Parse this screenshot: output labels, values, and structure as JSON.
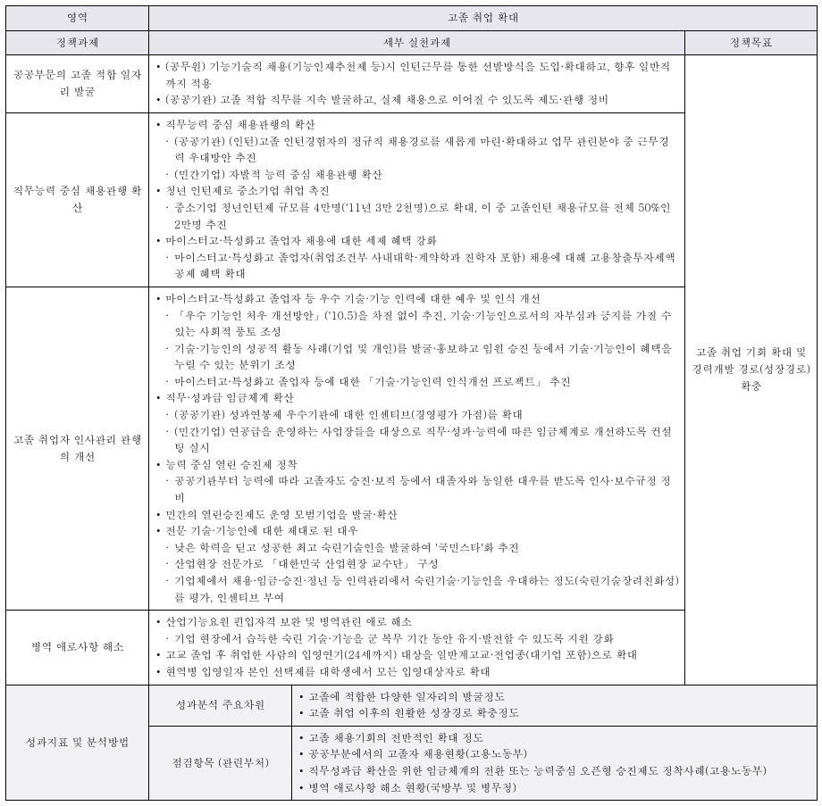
{
  "headers": {
    "area": "영역",
    "area_value": "고졸 취업 확대",
    "task": "정책과제",
    "detail": "세부 실천과제",
    "goal": "정책목표"
  },
  "goal_text": "고졸 취업 기회 확대 및 경력개발 경로(성장경로) 확충",
  "rows": [
    {
      "task": "공공부문의 고졸 적합 일자리 발굴",
      "lines": [
        {
          "lvl": 1,
          "t": "(공무원) 기능기술직 채용(기능인재추천제 등)시 인턴근무를 통한 선발방식을 도입·확대하고, 향후 일반직까지 적용"
        },
        {
          "lvl": 1,
          "t": "(공공기관) 고졸 적합 직무를 지속 발굴하고, 실제 채용으로 이어질 수 있도록 제도·관행 정비"
        }
      ]
    },
    {
      "task": "직무능력 중심 채용관행 확산",
      "lines": [
        {
          "lvl": 1,
          "t": "직무능력 중심 채용관행의 확산"
        },
        {
          "lvl": 2,
          "t": "(공공기관) (인턴)고졸 인턴경험자의 정규직 채용경로를 새롭게 마련·확대하고 업무 관련분야 중 근무경력 우대방안 추진"
        },
        {
          "lvl": 2,
          "t": "(민간기업) 자발적 능력 중심 채용관행 확산"
        },
        {
          "lvl": 1,
          "t": "청년 인턴제로 중소기업 취업 촉진"
        },
        {
          "lvl": 2,
          "t": "중소기업 청년인턴제 규모를 4만명('11년 3만 2천명)으로 확대, 이 중 고졸인턴 채용규모를 전체 50%인 2만명 추진"
        },
        {
          "lvl": 1,
          "t": "마이스터고·특성화고 졸업자 채용에 대한 세제 혜택 강화"
        },
        {
          "lvl": 2,
          "t": "마이스터고·특성화고 졸업자(취업조건부 사내대학·계약학과 진학자 포함) 채용에 대해 고용창출투자세액공제 혜택 확대"
        }
      ]
    },
    {
      "task": "고졸 취업자 인사관리 관행의 개선",
      "lines": [
        {
          "lvl": 1,
          "t": "마이스터고·특성화고 졸업자 등 우수 기술·기능 인력에 대한 예우 및 인식 개선"
        },
        {
          "lvl": 2,
          "t": "「우수 기능인 처우 개선방안」('10.5)을 차질 없이 추진, 기술·기능인으로서의 자부심과 긍지를 가질 수 있는 사회적 풍토 조성"
        },
        {
          "lvl": 2,
          "t": "기술·기능인의 성공적 활동 사례(기업 및 개인)를 발굴·홍보하고 임원 승진 등에서 기술·기능인이 혜택을 누릴 수 있는 분위기 조성"
        },
        {
          "lvl": 2,
          "t": "마이스터고·특성화고 졸업자 등에 대한 「기술·기능인력 인식개선 프로젝트」 추진"
        },
        {
          "lvl": 1,
          "t": "직무·성과급 임금체계 확산"
        },
        {
          "lvl": 2,
          "t": "(공공기관) 성과연봉제 우수기관에 대한 인센티브(경영평가 가점)를 확대"
        },
        {
          "lvl": 2,
          "t": "(민간기업) 연공급을 운영하는 사업장들을 대상으로 직무·성과·능력에 따른 임금체계로 개선하도록 컨설팅 실시"
        },
        {
          "lvl": 1,
          "t": "능력 중심 열린 승진제 정착"
        },
        {
          "lvl": 2,
          "t": "공공기관부터 능력에 따라 고졸자도 승진·보직 등에서 대졸자와 동일한 대우를 받도록 인사·보수규정 정비"
        },
        {
          "lvl": 1,
          "t": "민간의 열린승진제도 운영 모범기업을 발굴·확산"
        },
        {
          "lvl": 1,
          "t": "전문 기술·기능인에 대한 제대로 된 대우"
        },
        {
          "lvl": 2,
          "t": "낮은 학력을 딛고 성공한 최고 숙련기술인을 발굴하여 '국민스타'화 추진"
        },
        {
          "lvl": 2,
          "t": "산업현장 전문가로 「대한민국 산업현장 교수단」 구성"
        },
        {
          "lvl": 2,
          "t": "기업체에서 채용·임금·승진·정년 등 인력관리에서 숙련기술·기능인을 우대하는 정도(숙련기술장려친화성)를 평가, 인센티브 부여"
        }
      ]
    },
    {
      "task": "병역 애로사항 해소",
      "lines": [
        {
          "lvl": 1,
          "t": "산업기능요원 편입자격 보완 및 병역관련 애로 해소"
        },
        {
          "lvl": 2,
          "t": "기업 현장에서 습득한 숙련 기술·기능을 군 복무 기간 동안 유지·발전할 수 있도록 지원 강화"
        },
        {
          "lvl": 1,
          "t": "고교 졸업 후 취업한 사람의 입영연기(24세까지) 대상을 일반계고교·전업종(대기업 포함)으로 확대"
        },
        {
          "lvl": 1,
          "t": "현역병 입영일자 본인 선택제를 대학생에서 모든 입영대상자로 확대"
        }
      ]
    }
  ],
  "bottom": {
    "label": "성과지표 및 분석방법",
    "r1_label": "성과분석 주요차원",
    "r1_lines": [
      {
        "lvl": 1,
        "t": "고졸에 적합한 다양한 일자리의 발굴정도"
      },
      {
        "lvl": 1,
        "t": "고졸 취업 이후의 원활한 성장경로 확충정도"
      }
    ],
    "r2_label": "점검항목 (관련부처)",
    "r2_lines": [
      {
        "lvl": 1,
        "t": "고졸 채용기회의 전반적인 확대 정도"
      },
      {
        "lvl": 1,
        "t": "공공부분에서의 고졸자 채용현황(고용노동부)"
      },
      {
        "lvl": 1,
        "t": "직무성과급 확산을 위한 임금체계의 전환 또는 능력중심 오픈형 승진제도 정착사례(고용노동부)"
      },
      {
        "lvl": 1,
        "t": "병역 애로사항 해소 현황(국방부 및 병무청)"
      }
    ]
  }
}
